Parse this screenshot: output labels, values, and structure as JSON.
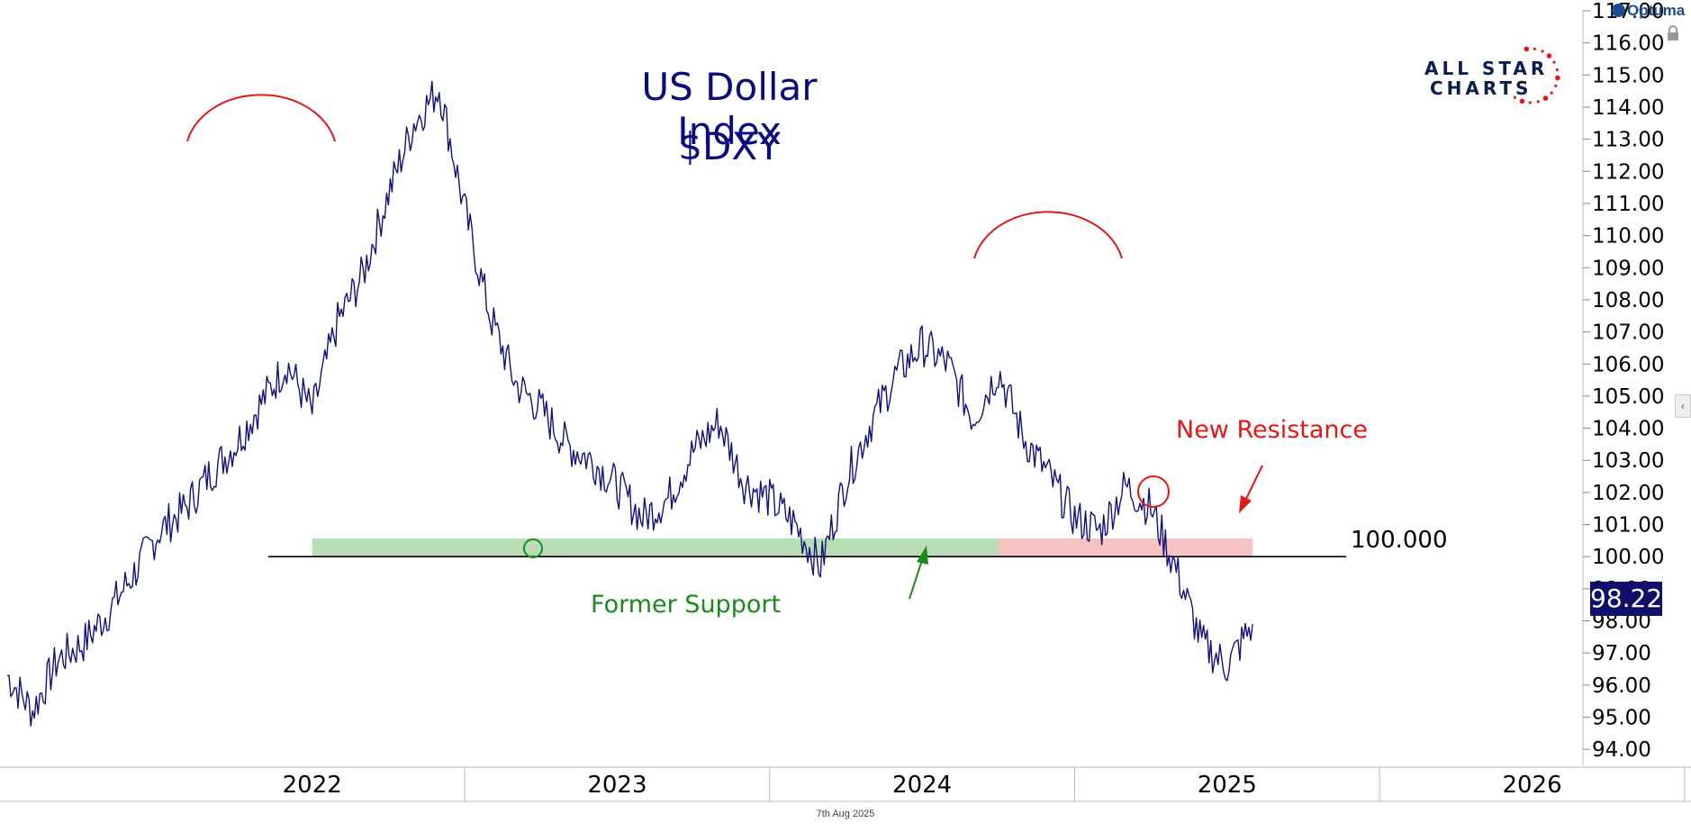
{
  "header": {
    "title_line1": "US Dollar Index",
    "title_line2": "$DXY",
    "optuma": "Optuma",
    "logo_line1": "ALL STAR",
    "logo_line2": "CHARTS",
    "date_footer": "7th Aug 2025"
  },
  "annotations": {
    "resistance": "New Resistance",
    "support": "Former Support",
    "level": "100.000",
    "last_value": "98.22"
  },
  "colors": {
    "price_line": "#12127a",
    "support_zone": "#b9ddb4",
    "resistance_zone": "#f6c3c3",
    "title": "#0b0b80",
    "red_annotation": "#e01818",
    "green_annotation": "#1a8a1a",
    "badge": "#10106b"
  },
  "icons": {
    "lock": "lock-icon",
    "collapse": "chevron-left-icon"
  },
  "chart_data": {
    "type": "line",
    "title": "US Dollar Index $DXY",
    "xlabel": "",
    "ylabel": "",
    "ylim": [
      93.5,
      117.0
    ],
    "x_tick_labels": [
      "2022",
      "2023",
      "2024",
      "2025",
      "2026"
    ],
    "y_tick_labels": [
      "94.00",
      "95.00",
      "96.00",
      "97.00",
      "98.00",
      "99.00",
      "100.00",
      "101.00",
      "102.00",
      "103.00",
      "104.00",
      "105.00",
      "106.00",
      "107.00",
      "108.00",
      "109.00",
      "110.00",
      "111.00",
      "112.00",
      "113.00",
      "114.00",
      "115.00",
      "116.00",
      "117.00"
    ],
    "horizontal_level": 100.0,
    "support_zone": {
      "from": "2022-07",
      "to": "2024-10",
      "y": [
        100.0,
        100.4
      ]
    },
    "resistance_zone": {
      "from": "2024-10",
      "to": "2025-08",
      "y": [
        100.0,
        100.4
      ]
    },
    "last_value": 98.22,
    "grid": false,
    "series": [
      {
        "x": [
          "2021-07",
          "2021-08",
          "2021-09",
          "2021-10",
          "2021-11",
          "2021-12",
          "2022-01",
          "2022-02",
          "2022-03",
          "2022-04",
          "2022-05",
          "2022-06",
          "2022-07",
          "2022-08",
          "2022-09",
          "2022-10",
          "2022-11",
          "2022-12",
          "2023-01",
          "2023-02",
          "2023-03",
          "2023-04",
          "2023-05",
          "2023-06",
          "2023-07",
          "2023-08",
          "2023-09",
          "2023-10",
          "2023-11",
          "2023-12",
          "2024-01",
          "2024-02",
          "2024-03",
          "2024-04",
          "2024-05",
          "2024-06",
          "2024-07",
          "2024-08",
          "2024-09",
          "2024-10",
          "2024-11",
          "2024-12",
          "2025-01",
          "2025-02",
          "2025-03",
          "2025-04",
          "2025-05",
          "2025-06",
          "2025-07",
          "2025-08"
        ],
        "values": [
          96.3,
          95.2,
          96.8,
          97.3,
          98.3,
          99.5,
          100.8,
          101.5,
          102.6,
          103.5,
          104.8,
          106.0,
          104.5,
          107.3,
          108.8,
          111.3,
          113.5,
          114.6,
          110.8,
          107.5,
          105.4,
          104.6,
          103.5,
          103.0,
          102.2,
          101.2,
          101.8,
          103.3,
          104.2,
          102.3,
          101.8,
          101.0,
          99.7,
          102.4,
          104.2,
          105.7,
          106.6,
          106.0,
          104.3,
          105.8,
          103.7,
          102.5,
          101.2,
          100.8,
          102.2,
          101.5,
          99.6,
          97.3,
          96.6,
          97.9
        ]
      }
    ]
  }
}
